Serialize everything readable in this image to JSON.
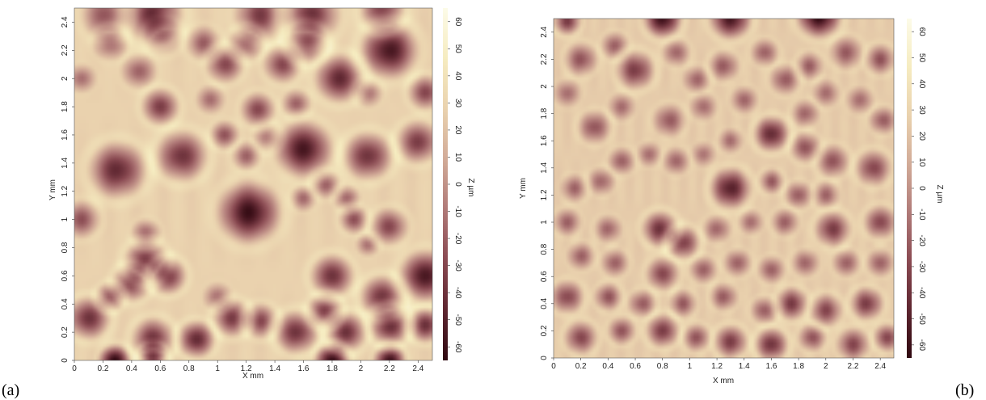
{
  "figure": {
    "labels": [
      "(a)",
      "(b)"
    ]
  },
  "colors": {
    "colormap": [
      "#2f0810",
      "#5e2630",
      "#8a4a52",
      "#b07a78",
      "#d2ab98",
      "#ead2ae",
      "#f6ecc0",
      "#fcfbe8"
    ]
  },
  "chart_data": [
    {
      "type": "heatmap",
      "panel": "(a)",
      "xlabel": "X mm",
      "ylabel": "Y mm",
      "colorbar_label": "Z µm",
      "xlim": [
        0,
        2.5
      ],
      "ylim": [
        0,
        2.5
      ],
      "zlim": [
        -65,
        65
      ],
      "x_ticks": [
        "0",
        "0.2",
        "0.4",
        "0.6",
        "0.8",
        "1",
        "1.2",
        "1.4",
        "1.6",
        "1.8",
        "2",
        "2.2",
        "2.4"
      ],
      "y_ticks": [
        "0",
        "0.2",
        "0.4",
        "0.6",
        "0.8",
        "1",
        "1.2",
        "1.4",
        "1.6",
        "1.8",
        "2",
        "2.2",
        "2.4"
      ],
      "colorbar_ticks": [
        "-60",
        "-50",
        "-40",
        "-30",
        "-20",
        "-10",
        "0",
        "10",
        "20",
        "30",
        "40",
        "50",
        "60"
      ],
      "background_z": 28,
      "depressions": [
        {
          "x": 0.22,
          "y": 2.45,
          "r": 0.17,
          "z": -25
        },
        {
          "x": 0.55,
          "y": 2.45,
          "r": 0.2,
          "z": -45
        },
        {
          "x": 1.3,
          "y": 2.45,
          "r": 0.18,
          "z": -35
        },
        {
          "x": 1.65,
          "y": 2.45,
          "r": 0.2,
          "z": -40
        },
        {
          "x": 2.15,
          "y": 2.48,
          "r": 0.15,
          "z": -35
        },
        {
          "x": 0.25,
          "y": 2.25,
          "r": 0.12,
          "z": -20
        },
        {
          "x": 0.45,
          "y": 2.05,
          "r": 0.12,
          "z": -20
        },
        {
          "x": 0.62,
          "y": 2.3,
          "r": 0.13,
          "z": -22
        },
        {
          "x": 0.9,
          "y": 2.25,
          "r": 0.12,
          "z": -20
        },
        {
          "x": 1.05,
          "y": 2.1,
          "r": 0.13,
          "z": -30
        },
        {
          "x": 1.2,
          "y": 2.25,
          "r": 0.12,
          "z": -25
        },
        {
          "x": 1.45,
          "y": 2.1,
          "r": 0.13,
          "z": -30
        },
        {
          "x": 1.62,
          "y": 2.25,
          "r": 0.14,
          "z": -35
        },
        {
          "x": 1.85,
          "y": 2.0,
          "r": 0.17,
          "z": -45
        },
        {
          "x": 2.2,
          "y": 2.2,
          "r": 0.2,
          "z": -55
        },
        {
          "x": 0.05,
          "y": 2.0,
          "r": 0.1,
          "z": -15
        },
        {
          "x": 0.6,
          "y": 1.8,
          "r": 0.13,
          "z": -35
        },
        {
          "x": 0.95,
          "y": 1.85,
          "r": 0.1,
          "z": -15
        },
        {
          "x": 1.28,
          "y": 1.78,
          "r": 0.12,
          "z": -30
        },
        {
          "x": 1.55,
          "y": 1.82,
          "r": 0.1,
          "z": -20
        },
        {
          "x": 2.05,
          "y": 1.9,
          "r": 0.1,
          "z": -15
        },
        {
          "x": 2.45,
          "y": 1.9,
          "r": 0.12,
          "z": -30
        },
        {
          "x": 1.05,
          "y": 1.6,
          "r": 0.1,
          "z": -25
        },
        {
          "x": 1.35,
          "y": 1.58,
          "r": 0.1,
          "z": -15
        },
        {
          "x": 0.3,
          "y": 1.35,
          "r": 0.2,
          "z": -45
        },
        {
          "x": 0.75,
          "y": 1.45,
          "r": 0.18,
          "z": -40
        },
        {
          "x": 1.2,
          "y": 1.45,
          "r": 0.1,
          "z": -18
        },
        {
          "x": 1.6,
          "y": 1.5,
          "r": 0.2,
          "z": -55
        },
        {
          "x": 2.05,
          "y": 1.45,
          "r": 0.17,
          "z": -40
        },
        {
          "x": 2.4,
          "y": 1.55,
          "r": 0.15,
          "z": -35
        },
        {
          "x": 1.75,
          "y": 1.25,
          "r": 0.1,
          "z": -20
        },
        {
          "x": 1.9,
          "y": 1.15,
          "r": 0.09,
          "z": -18
        },
        {
          "x": 1.6,
          "y": 1.15,
          "r": 0.09,
          "z": -15
        },
        {
          "x": 1.22,
          "y": 1.05,
          "r": 0.22,
          "z": -60
        },
        {
          "x": 0.05,
          "y": 1.0,
          "r": 0.13,
          "z": -25
        },
        {
          "x": 1.95,
          "y": 1.0,
          "r": 0.1,
          "z": -25
        },
        {
          "x": 2.2,
          "y": 0.95,
          "r": 0.13,
          "z": -30
        },
        {
          "x": 2.05,
          "y": 0.82,
          "r": 0.08,
          "z": -15
        },
        {
          "x": 0.5,
          "y": 0.7,
          "r": 0.15,
          "z": -40
        },
        {
          "x": 0.65,
          "y": 0.6,
          "r": 0.13,
          "z": -40
        },
        {
          "x": 0.4,
          "y": 0.55,
          "r": 0.13,
          "z": -35
        },
        {
          "x": 0.5,
          "y": 0.9,
          "r": 0.1,
          "z": -20
        },
        {
          "x": 1.0,
          "y": 0.45,
          "r": 0.1,
          "z": -15
        },
        {
          "x": 1.8,
          "y": 0.6,
          "r": 0.15,
          "z": -40
        },
        {
          "x": 2.15,
          "y": 0.45,
          "r": 0.15,
          "z": -40
        },
        {
          "x": 2.45,
          "y": 0.6,
          "r": 0.18,
          "z": -55
        },
        {
          "x": 0.1,
          "y": 0.3,
          "r": 0.15,
          "z": -40
        },
        {
          "x": 0.25,
          "y": 0.45,
          "r": 0.1,
          "z": -30
        },
        {
          "x": 0.55,
          "y": 0.15,
          "r": 0.15,
          "z": -40
        },
        {
          "x": 0.85,
          "y": 0.15,
          "r": 0.13,
          "z": -45
        },
        {
          "x": 1.1,
          "y": 0.3,
          "r": 0.13,
          "z": -35
        },
        {
          "x": 1.3,
          "y": 0.28,
          "r": 0.12,
          "z": -30
        },
        {
          "x": 1.55,
          "y": 0.2,
          "r": 0.15,
          "z": -40
        },
        {
          "x": 1.75,
          "y": 0.35,
          "r": 0.12,
          "z": -35
        },
        {
          "x": 1.9,
          "y": 0.2,
          "r": 0.14,
          "z": -40
        },
        {
          "x": 2.2,
          "y": 0.25,
          "r": 0.14,
          "z": -45
        },
        {
          "x": 2.45,
          "y": 0.25,
          "r": 0.12,
          "z": -40
        },
        {
          "x": 0.28,
          "y": 0.0,
          "r": 0.11,
          "z": -65
        },
        {
          "x": 0.55,
          "y": 0.02,
          "r": 0.1,
          "z": -40
        },
        {
          "x": 1.8,
          "y": 0.0,
          "r": 0.12,
          "z": -65
        },
        {
          "x": 2.2,
          "y": 0.0,
          "r": 0.11,
          "z": -60
        }
      ]
    },
    {
      "type": "heatmap",
      "panel": "(b)",
      "xlabel": "X mm",
      "ylabel": "Y mm",
      "colorbar_label": "Z µm",
      "xlim": [
        0,
        2.5
      ],
      "ylim": [
        0,
        2.5
      ],
      "zlim": [
        -65,
        65
      ],
      "x_ticks": [
        "0",
        "0.2",
        "0.4",
        "0.6",
        "0.8",
        "1",
        "1.2",
        "1.4",
        "1.6",
        "1.8",
        "2",
        "2.2",
        "2.4"
      ],
      "y_ticks": [
        "0",
        "0.2",
        "0.4",
        "0.6",
        "0.8",
        "1",
        "1.2",
        "1.4",
        "1.6",
        "1.8",
        "2",
        "2.2",
        "2.4"
      ],
      "colorbar_ticks": [
        "-60",
        "-50",
        "-40",
        "-30",
        "-20",
        "-10",
        "0",
        "10",
        "20",
        "30",
        "40",
        "50",
        "60"
      ],
      "background_z": 25,
      "depressions": [
        {
          "x": 0.8,
          "y": 2.5,
          "r": 0.14,
          "z": -60
        },
        {
          "x": 1.3,
          "y": 2.5,
          "r": 0.15,
          "z": -55
        },
        {
          "x": 1.95,
          "y": 2.52,
          "r": 0.16,
          "z": -65
        },
        {
          "x": 0.1,
          "y": 2.48,
          "r": 0.1,
          "z": -35
        },
        {
          "x": 0.2,
          "y": 2.2,
          "r": 0.12,
          "z": -25
        },
        {
          "x": 0.45,
          "y": 2.3,
          "r": 0.1,
          "z": -20
        },
        {
          "x": 0.6,
          "y": 2.12,
          "r": 0.14,
          "z": -35
        },
        {
          "x": 0.9,
          "y": 2.25,
          "r": 0.1,
          "z": -18
        },
        {
          "x": 1.05,
          "y": 2.05,
          "r": 0.1,
          "z": -18
        },
        {
          "x": 1.25,
          "y": 2.15,
          "r": 0.11,
          "z": -22
        },
        {
          "x": 1.55,
          "y": 2.25,
          "r": 0.1,
          "z": -20
        },
        {
          "x": 1.7,
          "y": 2.05,
          "r": 0.11,
          "z": -22
        },
        {
          "x": 1.88,
          "y": 2.15,
          "r": 0.1,
          "z": -20
        },
        {
          "x": 2.15,
          "y": 2.25,
          "r": 0.12,
          "z": -22
        },
        {
          "x": 2.4,
          "y": 2.2,
          "r": 0.11,
          "z": -25
        },
        {
          "x": 0.1,
          "y": 1.95,
          "r": 0.1,
          "z": -15
        },
        {
          "x": 0.3,
          "y": 1.7,
          "r": 0.12,
          "z": -25
        },
        {
          "x": 0.5,
          "y": 1.85,
          "r": 0.1,
          "z": -15
        },
        {
          "x": 0.85,
          "y": 1.75,
          "r": 0.12,
          "z": -22
        },
        {
          "x": 1.1,
          "y": 1.85,
          "r": 0.1,
          "z": -15
        },
        {
          "x": 1.4,
          "y": 1.9,
          "r": 0.1,
          "z": -18
        },
        {
          "x": 1.85,
          "y": 1.8,
          "r": 0.1,
          "z": -18
        },
        {
          "x": 2.0,
          "y": 1.95,
          "r": 0.1,
          "z": -15
        },
        {
          "x": 2.25,
          "y": 1.9,
          "r": 0.1,
          "z": -15
        },
        {
          "x": 2.42,
          "y": 1.75,
          "r": 0.1,
          "z": -22
        },
        {
          "x": 1.6,
          "y": 1.65,
          "r": 0.13,
          "z": -45
        },
        {
          "x": 1.3,
          "y": 1.6,
          "r": 0.09,
          "z": -15
        },
        {
          "x": 0.5,
          "y": 1.45,
          "r": 0.1,
          "z": -20
        },
        {
          "x": 0.7,
          "y": 1.5,
          "r": 0.09,
          "z": -15
        },
        {
          "x": 0.9,
          "y": 1.45,
          "r": 0.1,
          "z": -18
        },
        {
          "x": 1.1,
          "y": 1.5,
          "r": 0.09,
          "z": -12
        },
        {
          "x": 1.85,
          "y": 1.55,
          "r": 0.11,
          "z": -25
        },
        {
          "x": 2.05,
          "y": 1.45,
          "r": 0.12,
          "z": -25
        },
        {
          "x": 2.35,
          "y": 1.4,
          "r": 0.13,
          "z": -30
        },
        {
          "x": 0.15,
          "y": 1.25,
          "r": 0.1,
          "z": -18
        },
        {
          "x": 0.35,
          "y": 1.3,
          "r": 0.1,
          "z": -18
        },
        {
          "x": 1.3,
          "y": 1.25,
          "r": 0.15,
          "z": -50
        },
        {
          "x": 1.6,
          "y": 1.3,
          "r": 0.09,
          "z": -22
        },
        {
          "x": 1.8,
          "y": 1.2,
          "r": 0.1,
          "z": -22
        },
        {
          "x": 2.0,
          "y": 1.2,
          "r": 0.1,
          "z": -18
        },
        {
          "x": 0.1,
          "y": 1.0,
          "r": 0.1,
          "z": -20
        },
        {
          "x": 0.4,
          "y": 0.95,
          "r": 0.1,
          "z": -18
        },
        {
          "x": 0.78,
          "y": 0.95,
          "r": 0.13,
          "z": -40
        },
        {
          "x": 0.95,
          "y": 0.85,
          "r": 0.12,
          "z": -35
        },
        {
          "x": 1.2,
          "y": 0.95,
          "r": 0.1,
          "z": -18
        },
        {
          "x": 1.45,
          "y": 1.0,
          "r": 0.09,
          "z": -15
        },
        {
          "x": 1.7,
          "y": 1.0,
          "r": 0.1,
          "z": -20
        },
        {
          "x": 2.05,
          "y": 0.95,
          "r": 0.13,
          "z": -35
        },
        {
          "x": 2.4,
          "y": 1.0,
          "r": 0.12,
          "z": -30
        },
        {
          "x": 0.2,
          "y": 0.75,
          "r": 0.1,
          "z": -20
        },
        {
          "x": 0.45,
          "y": 0.7,
          "r": 0.1,
          "z": -20
        },
        {
          "x": 0.8,
          "y": 0.62,
          "r": 0.12,
          "z": -30
        },
        {
          "x": 1.1,
          "y": 0.65,
          "r": 0.1,
          "z": -20
        },
        {
          "x": 1.35,
          "y": 0.7,
          "r": 0.1,
          "z": -20
        },
        {
          "x": 1.6,
          "y": 0.65,
          "r": 0.1,
          "z": -20
        },
        {
          "x": 1.85,
          "y": 0.7,
          "r": 0.1,
          "z": -18
        },
        {
          "x": 2.15,
          "y": 0.7,
          "r": 0.1,
          "z": -20
        },
        {
          "x": 2.4,
          "y": 0.7,
          "r": 0.1,
          "z": -20
        },
        {
          "x": 0.1,
          "y": 0.45,
          "r": 0.12,
          "z": -30
        },
        {
          "x": 0.4,
          "y": 0.45,
          "r": 0.1,
          "z": -25
        },
        {
          "x": 0.65,
          "y": 0.4,
          "r": 0.1,
          "z": -22
        },
        {
          "x": 0.95,
          "y": 0.4,
          "r": 0.1,
          "z": -22
        },
        {
          "x": 1.25,
          "y": 0.45,
          "r": 0.1,
          "z": -22
        },
        {
          "x": 1.55,
          "y": 0.35,
          "r": 0.1,
          "z": -22
        },
        {
          "x": 1.75,
          "y": 0.4,
          "r": 0.12,
          "z": -35
        },
        {
          "x": 2.0,
          "y": 0.35,
          "r": 0.12,
          "z": -30
        },
        {
          "x": 2.3,
          "y": 0.4,
          "r": 0.12,
          "z": -35
        },
        {
          "x": 0.2,
          "y": 0.15,
          "r": 0.12,
          "z": -30
        },
        {
          "x": 0.5,
          "y": 0.2,
          "r": 0.1,
          "z": -25
        },
        {
          "x": 0.8,
          "y": 0.2,
          "r": 0.12,
          "z": -35
        },
        {
          "x": 1.05,
          "y": 0.15,
          "r": 0.1,
          "z": -25
        },
        {
          "x": 1.3,
          "y": 0.12,
          "r": 0.12,
          "z": -35
        },
        {
          "x": 1.6,
          "y": 0.1,
          "r": 0.12,
          "z": -40
        },
        {
          "x": 1.9,
          "y": 0.15,
          "r": 0.1,
          "z": -25
        },
        {
          "x": 2.2,
          "y": 0.1,
          "r": 0.12,
          "z": -30
        },
        {
          "x": 2.45,
          "y": 0.15,
          "r": 0.1,
          "z": -30
        }
      ]
    }
  ]
}
